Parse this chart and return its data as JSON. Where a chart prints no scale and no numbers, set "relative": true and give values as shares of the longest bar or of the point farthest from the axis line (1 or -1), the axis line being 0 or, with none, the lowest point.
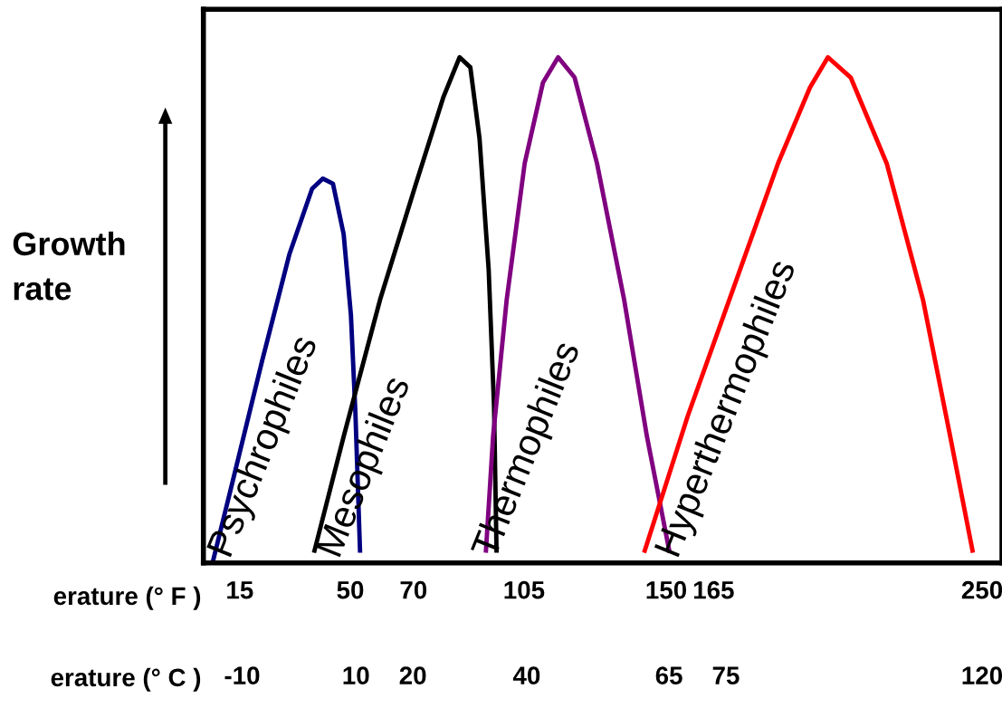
{
  "chart_data": {
    "type": "line",
    "relative": true,
    "ylabel": "Growth\nrate",
    "xlabel": "erature (° F )",
    "x2label": "erature (° C )",
    "xlim": [
      3.5,
      256.3
    ],
    "xticks": [
      15,
      50,
      70,
      105,
      150,
      165,
      250
    ],
    "x2lim": [
      -16.8,
      123.5
    ],
    "x2ticks": [
      -10,
      10,
      20,
      40,
      65,
      75,
      120
    ],
    "grid": false,
    "legend": false,
    "marker": "none",
    "line_style": "solid",
    "series": [
      {
        "name": "Psychrophiles",
        "color": "#000080",
        "x": [
          6.4,
          13.5,
          22.1,
          30.7,
          37.9,
          41.3,
          44.5,
          47.9,
          50.2,
          51.6,
          53.1
        ],
        "values": [
          0,
          0.18,
          0.4,
          0.61,
          0.74,
          0.76,
          0.75,
          0.65,
          0.49,
          0.3,
          0.02
        ]
      },
      {
        "name": "Mesophiles",
        "color": "#000000",
        "x": [
          38.5,
          47.9,
          59.4,
          70.8,
          79.4,
          84.6,
          88.0,
          90.9,
          93.8,
          95.5,
          96.3
        ],
        "values": [
          0.02,
          0.25,
          0.52,
          0.75,
          0.92,
          1,
          0.98,
          0.84,
          0.58,
          0.31,
          0.02
        ]
      },
      {
        "name": "Thermophiles",
        "color": "#800080",
        "x": [
          92.9,
          95.2,
          99.5,
          105.2,
          111.0,
          115.8,
          121.0,
          128.1,
          136.7,
          143.9,
          151.1
        ],
        "values": [
          0.02,
          0.25,
          0.52,
          0.79,
          0.95,
          1,
          0.96,
          0.79,
          0.52,
          0.25,
          0.02
        ]
      },
      {
        "name": "Hyperthermophiles",
        "color": "#ff0000",
        "x": [
          143.0,
          156.8,
          171.1,
          185.4,
          195.5,
          201.2,
          208.4,
          219.8,
          231.3,
          239.9,
          247.1
        ],
        "values": [
          0.02,
          0.29,
          0.54,
          0.79,
          0.94,
          1,
          0.96,
          0.79,
          0.52,
          0.25,
          0.02
        ]
      }
    ]
  }
}
